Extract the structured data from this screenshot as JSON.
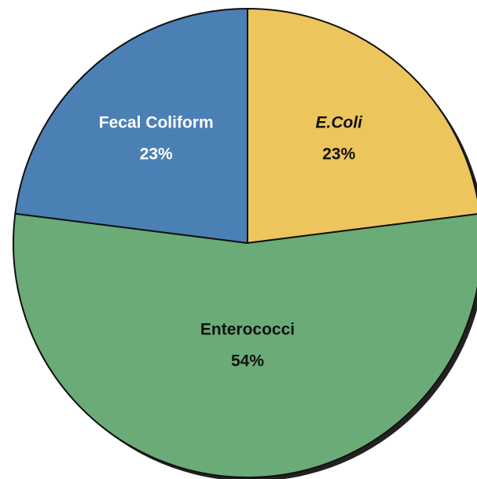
{
  "chart_data": {
    "type": "pie",
    "categories": [
      "E.Coli",
      "Enterococci",
      "Fecal Coliform"
    ],
    "values": [
      23,
      54,
      23
    ],
    "value_labels": [
      "23%",
      "54%",
      "23%"
    ],
    "colors": [
      "#ecc55c",
      "#6aab78",
      "#4b80b5"
    ]
  }
}
